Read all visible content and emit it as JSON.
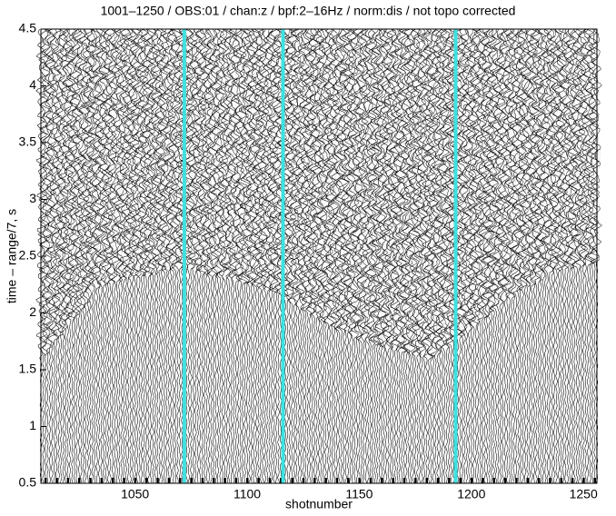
{
  "chart_data": {
    "type": "seismic",
    "title": "1001–1250 / OBS:01 / chan:z / bpf:2–16Hz / norm:dis / not topo corrected",
    "xlabel": "shotnumber",
    "ylabel": "time – range/7, s",
    "xlim": [
      1008,
      1256
    ],
    "xticks": [
      1050,
      1100,
      1150,
      1200,
      1250
    ],
    "ylim": [
      0.5,
      4.5
    ],
    "yticks": [
      0.5,
      1,
      1.5,
      2,
      2.5,
      3,
      3.5,
      4,
      4.5
    ],
    "markers": {
      "color": "#40e0e0",
      "x": [
        1072,
        1116,
        1193
      ]
    },
    "onset": {
      "x": [
        1008,
        1028,
        1034,
        1071,
        1111,
        1132,
        1152,
        1181,
        1193,
        1214,
        1235,
        1256
      ],
      "values": [
        1.6,
        2.1,
        2.25,
        2.4,
        2.2,
        1.95,
        1.75,
        1.6,
        1.75,
        2.1,
        2.35,
        2.45
      ]
    }
  }
}
